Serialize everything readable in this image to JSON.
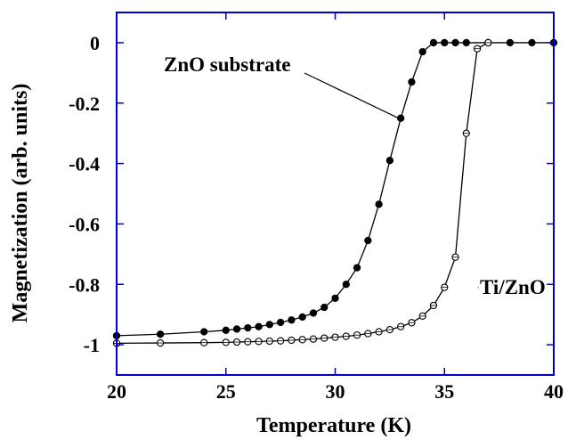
{
  "chart_data": {
    "type": "scatter",
    "title": "",
    "xlabel": "Temperature (K)",
    "ylabel": "Magnetization (arb. units)",
    "xlim": [
      20,
      40
    ],
    "ylim": [
      -1.1,
      0.1
    ],
    "xticks": [
      20,
      25,
      30,
      35,
      40
    ],
    "xtick_labels": [
      "20",
      "25",
      "30",
      "35",
      "40"
    ],
    "yticks": [
      0,
      -0.2,
      -0.4,
      -0.6,
      -0.8,
      -1
    ],
    "ytick_labels": [
      "0",
      "-0.2",
      "-0.4",
      "-0.6",
      "-0.8",
      "-1"
    ],
    "grid": false,
    "frame_color": "#0000cc",
    "annotations": [
      {
        "text": "ZnO substrate",
        "points_to": [
          32.9,
          -0.25
        ]
      },
      {
        "text": "Ti/ZnO",
        "points_to": [
          36.4,
          -0.81
        ]
      }
    ],
    "series": [
      {
        "label": "ZnO substrate",
        "marker": "filled-circle",
        "color": "#000000",
        "x": [
          20,
          22,
          24,
          25,
          25.5,
          26,
          26.5,
          27,
          27.5,
          28,
          28.5,
          29,
          29.5,
          30,
          30.5,
          31,
          31.5,
          32,
          32.5,
          33,
          33.5,
          34,
          34.5,
          35,
          35.5,
          36,
          37,
          38,
          39,
          40
        ],
        "y": [
          -0.97,
          -0.965,
          -0.957,
          -0.952,
          -0.948,
          -0.944,
          -0.94,
          -0.933,
          -0.926,
          -0.918,
          -0.908,
          -0.895,
          -0.876,
          -0.846,
          -0.8,
          -0.745,
          -0.655,
          -0.535,
          -0.39,
          -0.25,
          -0.13,
          -0.03,
          0,
          0,
          0,
          0,
          0,
          0,
          0,
          0
        ]
      },
      {
        "label": "Ti/ZnO",
        "marker": "open-circle",
        "color": "#000000",
        "x": [
          20,
          22,
          24,
          25,
          25.5,
          26,
          26.5,
          27,
          27.5,
          28,
          28.5,
          29,
          29.5,
          30,
          30.5,
          31,
          31.5,
          32,
          32.5,
          33,
          33.5,
          34,
          34.5,
          35,
          35.5,
          36,
          36.5,
          37
        ],
        "y": [
          -0.995,
          -0.994,
          -0.993,
          -0.992,
          -0.991,
          -0.99,
          -0.989,
          -0.988,
          -0.987,
          -0.985,
          -0.983,
          -0.981,
          -0.978,
          -0.975,
          -0.972,
          -0.968,
          -0.963,
          -0.957,
          -0.95,
          -0.94,
          -0.927,
          -0.905,
          -0.87,
          -0.81,
          -0.71,
          -0.3,
          -0.02,
          0
        ]
      }
    ]
  }
}
